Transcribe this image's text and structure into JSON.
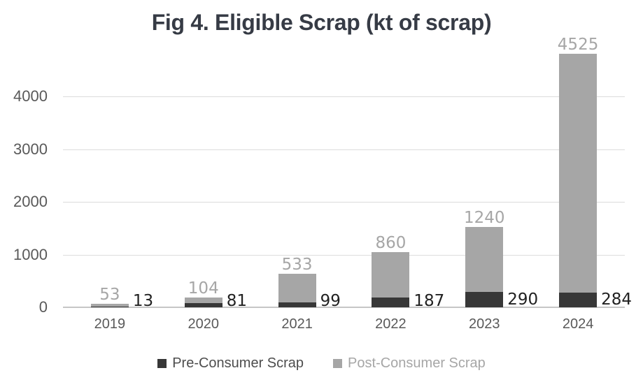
{
  "title": "Fig 4. Eligible Scrap (kt of scrap)",
  "chart_data": {
    "type": "bar",
    "stacked": true,
    "title": "Fig 4. Eligible Scrap (kt of scrap)",
    "categories": [
      "2019",
      "2020",
      "2021",
      "2022",
      "2023",
      "2024"
    ],
    "series": [
      {
        "name": "Pre-Consumer Scrap",
        "values": [
          13,
          81,
          99,
          187,
          290,
          284
        ],
        "color": "#373737",
        "label_color": "#212121"
      },
      {
        "name": "Post-Consumer Scrap",
        "values": [
          53,
          104,
          533,
          860,
          1240,
          4525
        ],
        "color": "#a6a6a6",
        "label_color": "#a6a6a6"
      }
    ],
    "y_ticks": [
      0,
      1000,
      2000,
      3000,
      4000
    ],
    "ylim": [
      0,
      4900
    ],
    "grid": true,
    "legend_position": "bottom",
    "xlabel": "",
    "ylabel": ""
  },
  "legend": {
    "items": [
      {
        "label": "Pre-Consumer Scrap",
        "swatch_color": "#373737",
        "text_color": "#4d4d4d"
      },
      {
        "label": "Post-Consumer Scrap",
        "swatch_color": "#a6a6a6",
        "text_color": "#a6a6a6"
      }
    ]
  },
  "colors": {
    "title_text": "#363b45",
    "axis_text": "#595959",
    "gridline": "#dcdcdc",
    "axis_line": "#c6c6c6",
    "background": "#ffffff"
  }
}
